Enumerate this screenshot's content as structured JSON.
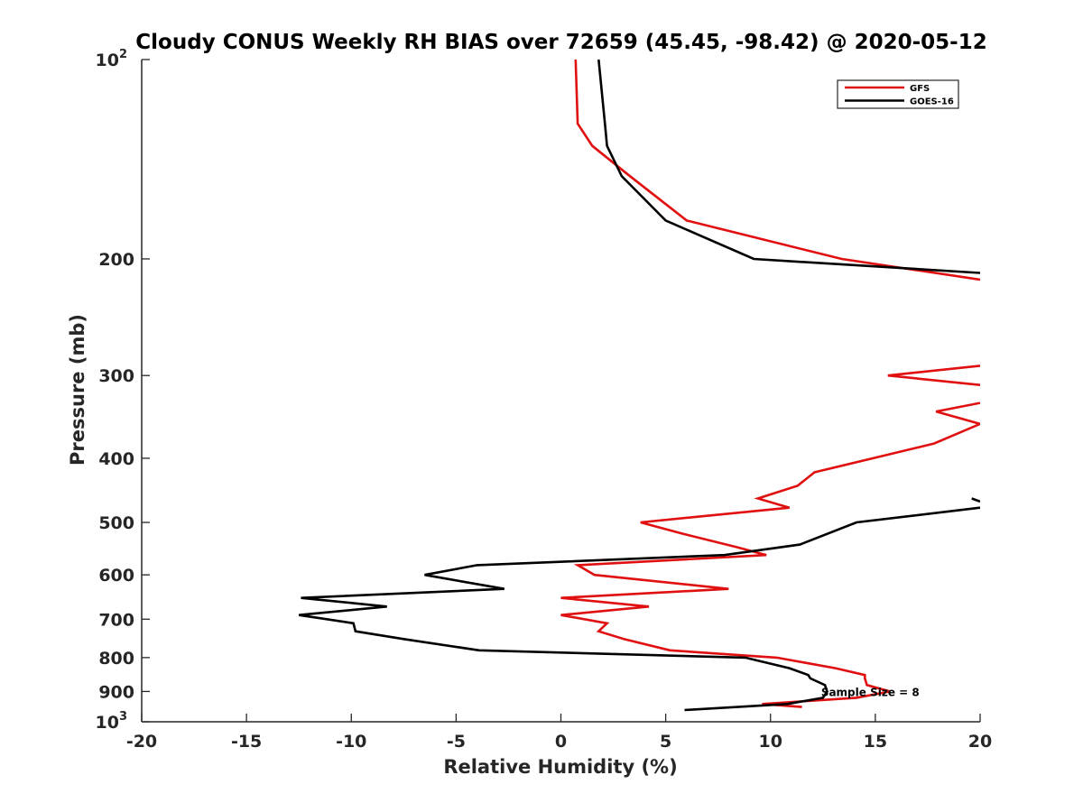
{
  "chart_data": {
    "type": "line",
    "title": "Cloudy CONUS Weekly RH BIAS over 72659 (45.45, -98.42) @ 2020-05-12",
    "xlabel": "Relative Humidity (%)",
    "ylabel": "Pressure (mb)",
    "xlim": [
      -20,
      20
    ],
    "ylim": [
      100,
      1000
    ],
    "y_scale": "log",
    "y_reversed": true,
    "grid": false,
    "legend_position": "top-right",
    "x_ticks": [
      -20,
      -15,
      -10,
      -5,
      0,
      5,
      10,
      15,
      20
    ],
    "x_tick_labels": [
      "-20",
      "-15",
      "-10",
      "-5",
      "0",
      "5",
      "10",
      "15",
      "20"
    ],
    "y_ticks": [
      100,
      200,
      300,
      400,
      500,
      600,
      700,
      800,
      900,
      1000
    ],
    "y_tick_labels": [
      {
        "base": "10",
        "sup": "2"
      },
      {
        "base": "200"
      },
      {
        "base": "300"
      },
      {
        "base": "400"
      },
      {
        "base": "500"
      },
      {
        "base": "600"
      },
      {
        "base": "700"
      },
      {
        "base": "800"
      },
      {
        "base": "900"
      },
      {
        "base": "10",
        "sup": "3"
      }
    ],
    "annotation": {
      "text": "Sample Size = 8",
      "x": 12.5,
      "y": 900
    },
    "series": [
      {
        "name": "GFS",
        "color": "#e01010",
        "points": [
          [
            0.7,
            100
          ],
          [
            0.8,
            125
          ],
          [
            1.5,
            135
          ],
          [
            3.3,
            150
          ],
          [
            6.0,
            175
          ],
          [
            13.4,
            200
          ],
          [
            20,
            215
          ],
          [
            null,
            null
          ],
          [
            20,
            290
          ],
          [
            15.6,
            300
          ],
          [
            20,
            310
          ],
          [
            null,
            null
          ],
          [
            20,
            330
          ],
          [
            17.9,
            340
          ],
          [
            20,
            355
          ],
          [
            17.8,
            380
          ],
          [
            12.1,
            420
          ],
          [
            11.3,
            440
          ],
          [
            9.4,
            460
          ],
          [
            10.9,
            475
          ],
          [
            3.8,
            500
          ],
          [
            5.8,
            520
          ],
          [
            8.4,
            545
          ],
          [
            9.8,
            560
          ],
          [
            0.8,
            580
          ],
          [
            1.6,
            600
          ],
          [
            8.0,
            630
          ],
          [
            0,
            650
          ],
          [
            4.2,
            670
          ],
          [
            0,
            690
          ],
          [
            2.2,
            710
          ],
          [
            1.8,
            730
          ],
          [
            3.0,
            750
          ],
          [
            5.2,
            780
          ],
          [
            10.3,
            800
          ],
          [
            13.1,
            830
          ],
          [
            14.5,
            850
          ],
          [
            14.5,
            860
          ],
          [
            14.6,
            880
          ],
          [
            15.7,
            900
          ],
          [
            14.1,
            920
          ],
          [
            9.6,
            940
          ],
          [
            11.5,
            950
          ]
        ]
      },
      {
        "name": "GOES-16",
        "color": "#000000",
        "points": [
          [
            1.8,
            100
          ],
          [
            2.1,
            125
          ],
          [
            2.2,
            135
          ],
          [
            2.9,
            150
          ],
          [
            5.0,
            175
          ],
          [
            9.2,
            200
          ],
          [
            20,
            210
          ],
          [
            null,
            null
          ],
          [
            19.6,
            460
          ],
          [
            20,
            465
          ],
          [
            null,
            null
          ],
          [
            20,
            475
          ],
          [
            14.1,
            500
          ],
          [
            11.4,
            540
          ],
          [
            7.8,
            560
          ],
          [
            -4.0,
            580
          ],
          [
            -6.5,
            600
          ],
          [
            -2.7,
            630
          ],
          [
            -12.4,
            650
          ],
          [
            -8.3,
            670
          ],
          [
            -12.5,
            690
          ],
          [
            -9.9,
            710
          ],
          [
            -9.8,
            730
          ],
          [
            -7.5,
            750
          ],
          [
            -3.9,
            780
          ],
          [
            8.8,
            800
          ],
          [
            10.9,
            830
          ],
          [
            11.8,
            850
          ],
          [
            11.9,
            860
          ],
          [
            12.6,
            880
          ],
          [
            12.7,
            900
          ],
          [
            12.5,
            920
          ],
          [
            10.8,
            940
          ],
          [
            5.9,
            960
          ]
        ]
      }
    ]
  }
}
